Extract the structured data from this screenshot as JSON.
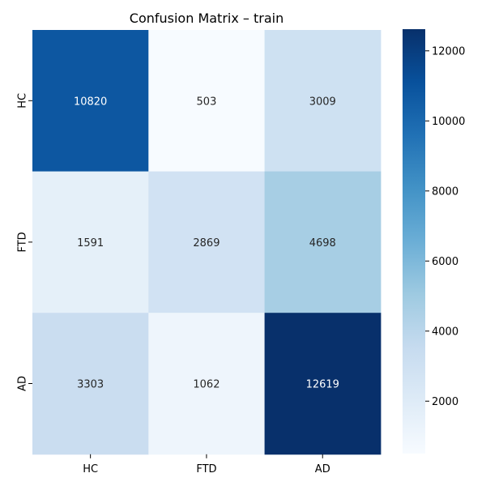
{
  "chart_data": {
    "type": "heatmap",
    "title": "Confusion Matrix – train",
    "row_labels": [
      "HC",
      "FTD",
      "AD"
    ],
    "col_labels": [
      "HC",
      "FTD",
      "AD"
    ],
    "values": [
      [
        10820,
        503,
        3009
      ],
      [
        1591,
        2869,
        4698
      ],
      [
        3303,
        1062,
        12619
      ]
    ],
    "colormap": "Blues",
    "colorbar": {
      "min": 503,
      "max": 12619,
      "ticks": [
        2000,
        4000,
        6000,
        8000,
        10000,
        12000
      ],
      "tick_labels": [
        "2000",
        "4000",
        "6000",
        "8000",
        "10000",
        "12000"
      ]
    },
    "xlabel": "",
    "ylabel": ""
  }
}
